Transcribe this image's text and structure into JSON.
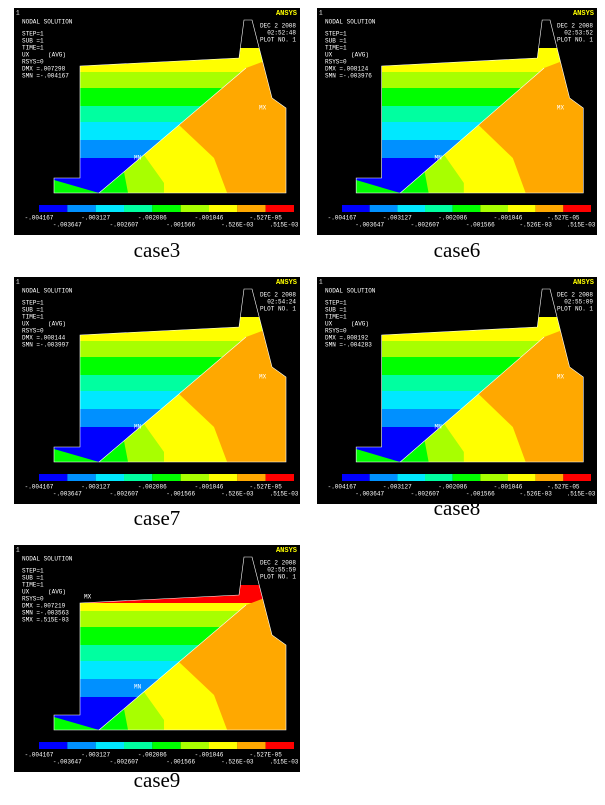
{
  "figure": {
    "legend_colors": [
      "#0000ff",
      "#0090ff",
      "#00e8ff",
      "#00ffa0",
      "#00ff00",
      "#a8ff00",
      "#ffff00",
      "#ffa800",
      "#ff0000"
    ],
    "panels": [
      {
        "caption": "case3",
        "window_number": "1",
        "title": "NODAL SOLUTION",
        "info": [
          "STEP=1",
          "SUB =1",
          "TIME=1",
          "UX",
          "RSYS=0",
          "DMX =.007298",
          "SMN =-.004167"
        ],
        "avg": "(AVG)",
        "logo": "ANSYS",
        "date": "DEC  2 2008",
        "time": "02:52:48",
        "plot_no": "PLOT NO.   1",
        "mx_label": "MX",
        "mn_label": "MN",
        "legend_top": [
          "-.004167",
          "-.003127",
          "-.002086",
          "-.001046",
          "-.527E-05"
        ],
        "legend_bottom": [
          "-.003647",
          "-.002607",
          "-.001566",
          "-.526E-03",
          ".515E-03"
        ]
      },
      {
        "caption": "case6",
        "window_number": "1",
        "title": "NODAL SOLUTION",
        "info": [
          "STEP=1",
          "SUB =1",
          "TIME=1",
          "UX",
          "RSYS=0",
          "DMX =.008124",
          "SMN =-.003976"
        ],
        "avg": "(AVG)",
        "logo": "ANSYS",
        "date": "DEC  2 2008",
        "time": "02:53:52",
        "plot_no": "PLOT NO.   1",
        "mx_label": "MX",
        "mn_label": "MN",
        "legend_top": [
          "-.004167",
          "-.003127",
          "-.002086",
          "-.001046",
          "-.527E-05"
        ],
        "legend_bottom": [
          "-.003647",
          "-.002607",
          "-.001566",
          "-.526E-03",
          ".515E-03"
        ]
      },
      {
        "caption": "case7",
        "window_number": "1",
        "title": "NODAL SOLUTION",
        "info": [
          "STEP=1",
          "SUB =1",
          "TIME=1",
          "UX",
          "RSYS=0",
          "DMX =.008144",
          "SMN =-.003997"
        ],
        "avg": "(AVG)",
        "logo": "ANSYS",
        "date": "DEC  2 2008",
        "time": "02:54:24",
        "plot_no": "PLOT NO.   1",
        "mx_label": "MX",
        "mn_label": "MN",
        "legend_top": [
          "-.004167",
          "-.003127",
          "-.002086",
          "-.001046",
          "-.527E-05"
        ],
        "legend_bottom": [
          "-.003647",
          "-.002607",
          "-.001566",
          "-.526E-03",
          ".515E-03"
        ]
      },
      {
        "caption": "case8",
        "window_number": "1",
        "title": "NODAL SOLUTION",
        "info": [
          "STEP=1",
          "SUB =1",
          "TIME=1",
          "UX",
          "RSYS=0",
          "DMX =.008192",
          "SMN =-.004283"
        ],
        "avg": "(AVG)",
        "logo": "ANSYS",
        "date": "DEC  2 2008",
        "time": "02:55:09",
        "plot_no": "PLOT NO.   1",
        "mx_label": "MX",
        "mn_label": "MN",
        "legend_top": [
          "-.004167",
          "-.003127",
          "-.002086",
          "-.001046",
          "-.527E-05"
        ],
        "legend_bottom": [
          "-.003647",
          "-.002607",
          "-.001566",
          "-.526E-03",
          ".515E-03"
        ]
      },
      {
        "caption": "case9",
        "window_number": "1",
        "title": "NODAL SOLUTION",
        "info": [
          "STEP=1",
          "SUB =1",
          "TIME=1",
          "UX",
          "RSYS=0",
          "DMX =.007219",
          "SMN =-.003563",
          "SMX =.515E-03"
        ],
        "avg": "(AVG)",
        "logo": "ANSYS",
        "date": "DEC  2 2008",
        "time": "02:55:59",
        "plot_no": "PLOT NO.   1",
        "mx_label": "MX",
        "mn_label": "MN",
        "legend_top": [
          "-.004167",
          "-.003127",
          "-.002086",
          "-.001046",
          "-.527E-05"
        ],
        "legend_bottom": [
          "-.003647",
          "-.002607",
          "-.001566",
          "-.526E-03",
          ".515E-03"
        ]
      }
    ]
  }
}
